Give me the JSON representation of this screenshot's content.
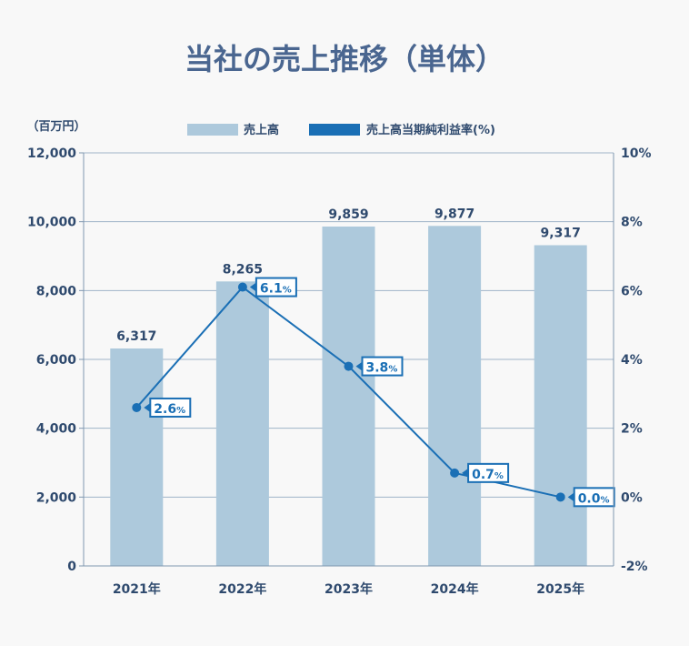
{
  "chart_data": {
    "type": "bar+line",
    "title": "当社の売上推移（単体）",
    "ylabel": "（百万円）",
    "categories": [
      "2021年",
      "2022年",
      "2023年",
      "2024年",
      "2025年"
    ],
    "series": [
      {
        "name": "売上高",
        "type": "bar",
        "axis": "left",
        "values": [
          6317,
          8265,
          9859,
          9877,
          9317
        ],
        "labels": [
          "6,317",
          "8,265",
          "9,859",
          "9,877",
          "9,317"
        ],
        "color": "#adc9dc"
      },
      {
        "name": "売上高当期純利益率(%)",
        "type": "line",
        "axis": "right",
        "values": [
          2.6,
          6.1,
          3.8,
          0.7,
          0.0
        ],
        "labels": [
          "2.6",
          "6.1",
          "3.8",
          "0.7",
          "0.0"
        ],
        "unit": "%",
        "color": "#1a6fb5"
      }
    ],
    "ylim": [
      0,
      12000
    ],
    "y2lim": [
      -2,
      10
    ],
    "yticks": [
      "0",
      "2,000",
      "4,000",
      "6,000",
      "8,000",
      "10,000",
      "12,000"
    ],
    "y2ticks": [
      "-2%",
      "0%",
      "2%",
      "4%",
      "6%",
      "8%",
      "10%"
    ],
    "grid": true,
    "legend": "top"
  }
}
